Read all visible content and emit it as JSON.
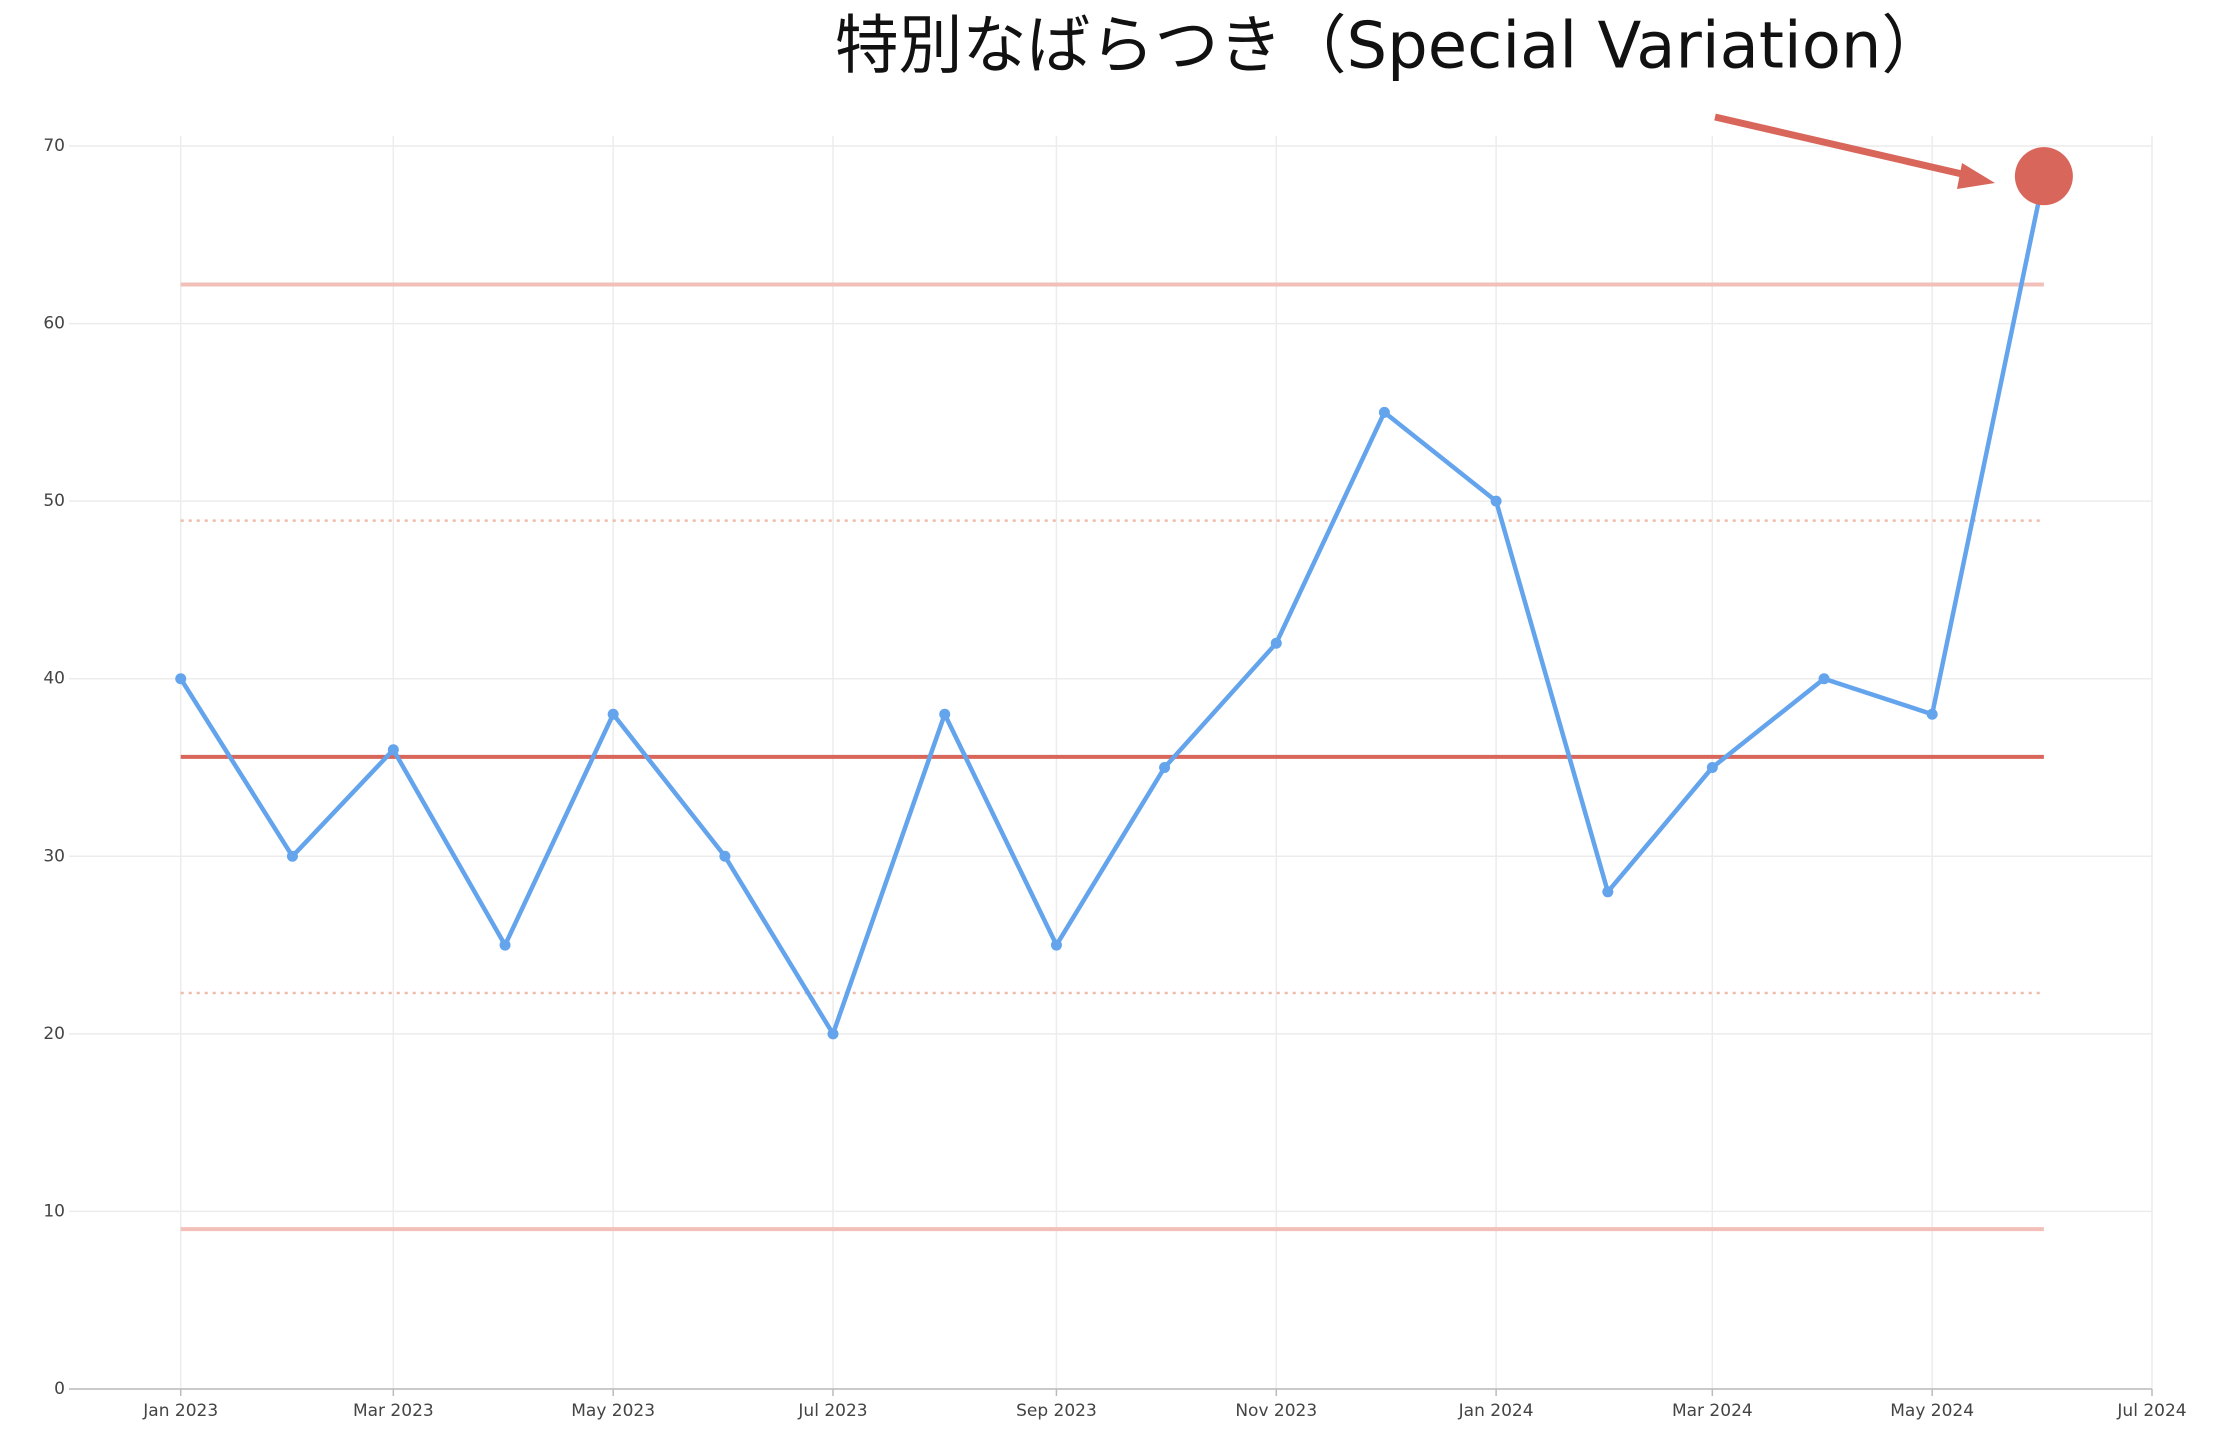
{
  "chart_data": {
    "type": "line",
    "annotation": {
      "text": "特別なばらつき（Special Variation）",
      "point": 17,
      "color": "#d9665b"
    },
    "x": [
      "2023-01",
      "2023-02",
      "2023-03",
      "2023-04",
      "2023-05",
      "2023-06",
      "2023-07",
      "2023-08",
      "2023-09",
      "2023-10",
      "2023-11",
      "2023-12",
      "2024-01",
      "2024-02",
      "2024-03",
      "2024-04",
      "2024-05",
      "2024-06"
    ],
    "series": [
      {
        "color": "#63a4ec",
        "values": [
          40,
          30,
          36,
          25,
          38,
          30,
          20,
          38,
          25,
          35,
          42,
          55,
          50,
          28,
          35,
          40,
          38,
          68.3
        ]
      }
    ],
    "reference_lines": [
      {
        "value": 62.2,
        "color": "#f2c0b8",
        "style": "solid"
      },
      {
        "value": 48.9,
        "color": "#f0b9a8",
        "style": "dotted"
      },
      {
        "value": 35.6,
        "color": "#d9665b",
        "style": "solid"
      },
      {
        "value": 22.3,
        "color": "#f0b9a8",
        "style": "dotted"
      },
      {
        "value": 9.0,
        "color": "#f2c0b8",
        "style": "solid"
      }
    ],
    "xlim": [
      "2022-12",
      "2024-07"
    ],
    "xticks": [
      {
        "value": "2023-01",
        "label": "Jan 2023"
      },
      {
        "value": "2023-03",
        "label": "Mar 2023"
      },
      {
        "value": "2023-05",
        "label": "May 2023"
      },
      {
        "value": "2023-07",
        "label": "Jul 2023"
      },
      {
        "value": "2023-09",
        "label": "Sep 2023"
      },
      {
        "value": "2023-11",
        "label": "Nov 2023"
      },
      {
        "value": "2024-01",
        "label": "Jan 2024"
      },
      {
        "value": "2024-03",
        "label": "Mar 2024"
      },
      {
        "value": "2024-05",
        "label": "May 2024"
      },
      {
        "value": "2024-07",
        "label": "Jul 2024"
      }
    ],
    "ylim": [
      0,
      70
    ],
    "yticks": [
      0,
      10,
      20,
      30,
      40,
      50,
      60,
      70
    ],
    "grid": true
  }
}
